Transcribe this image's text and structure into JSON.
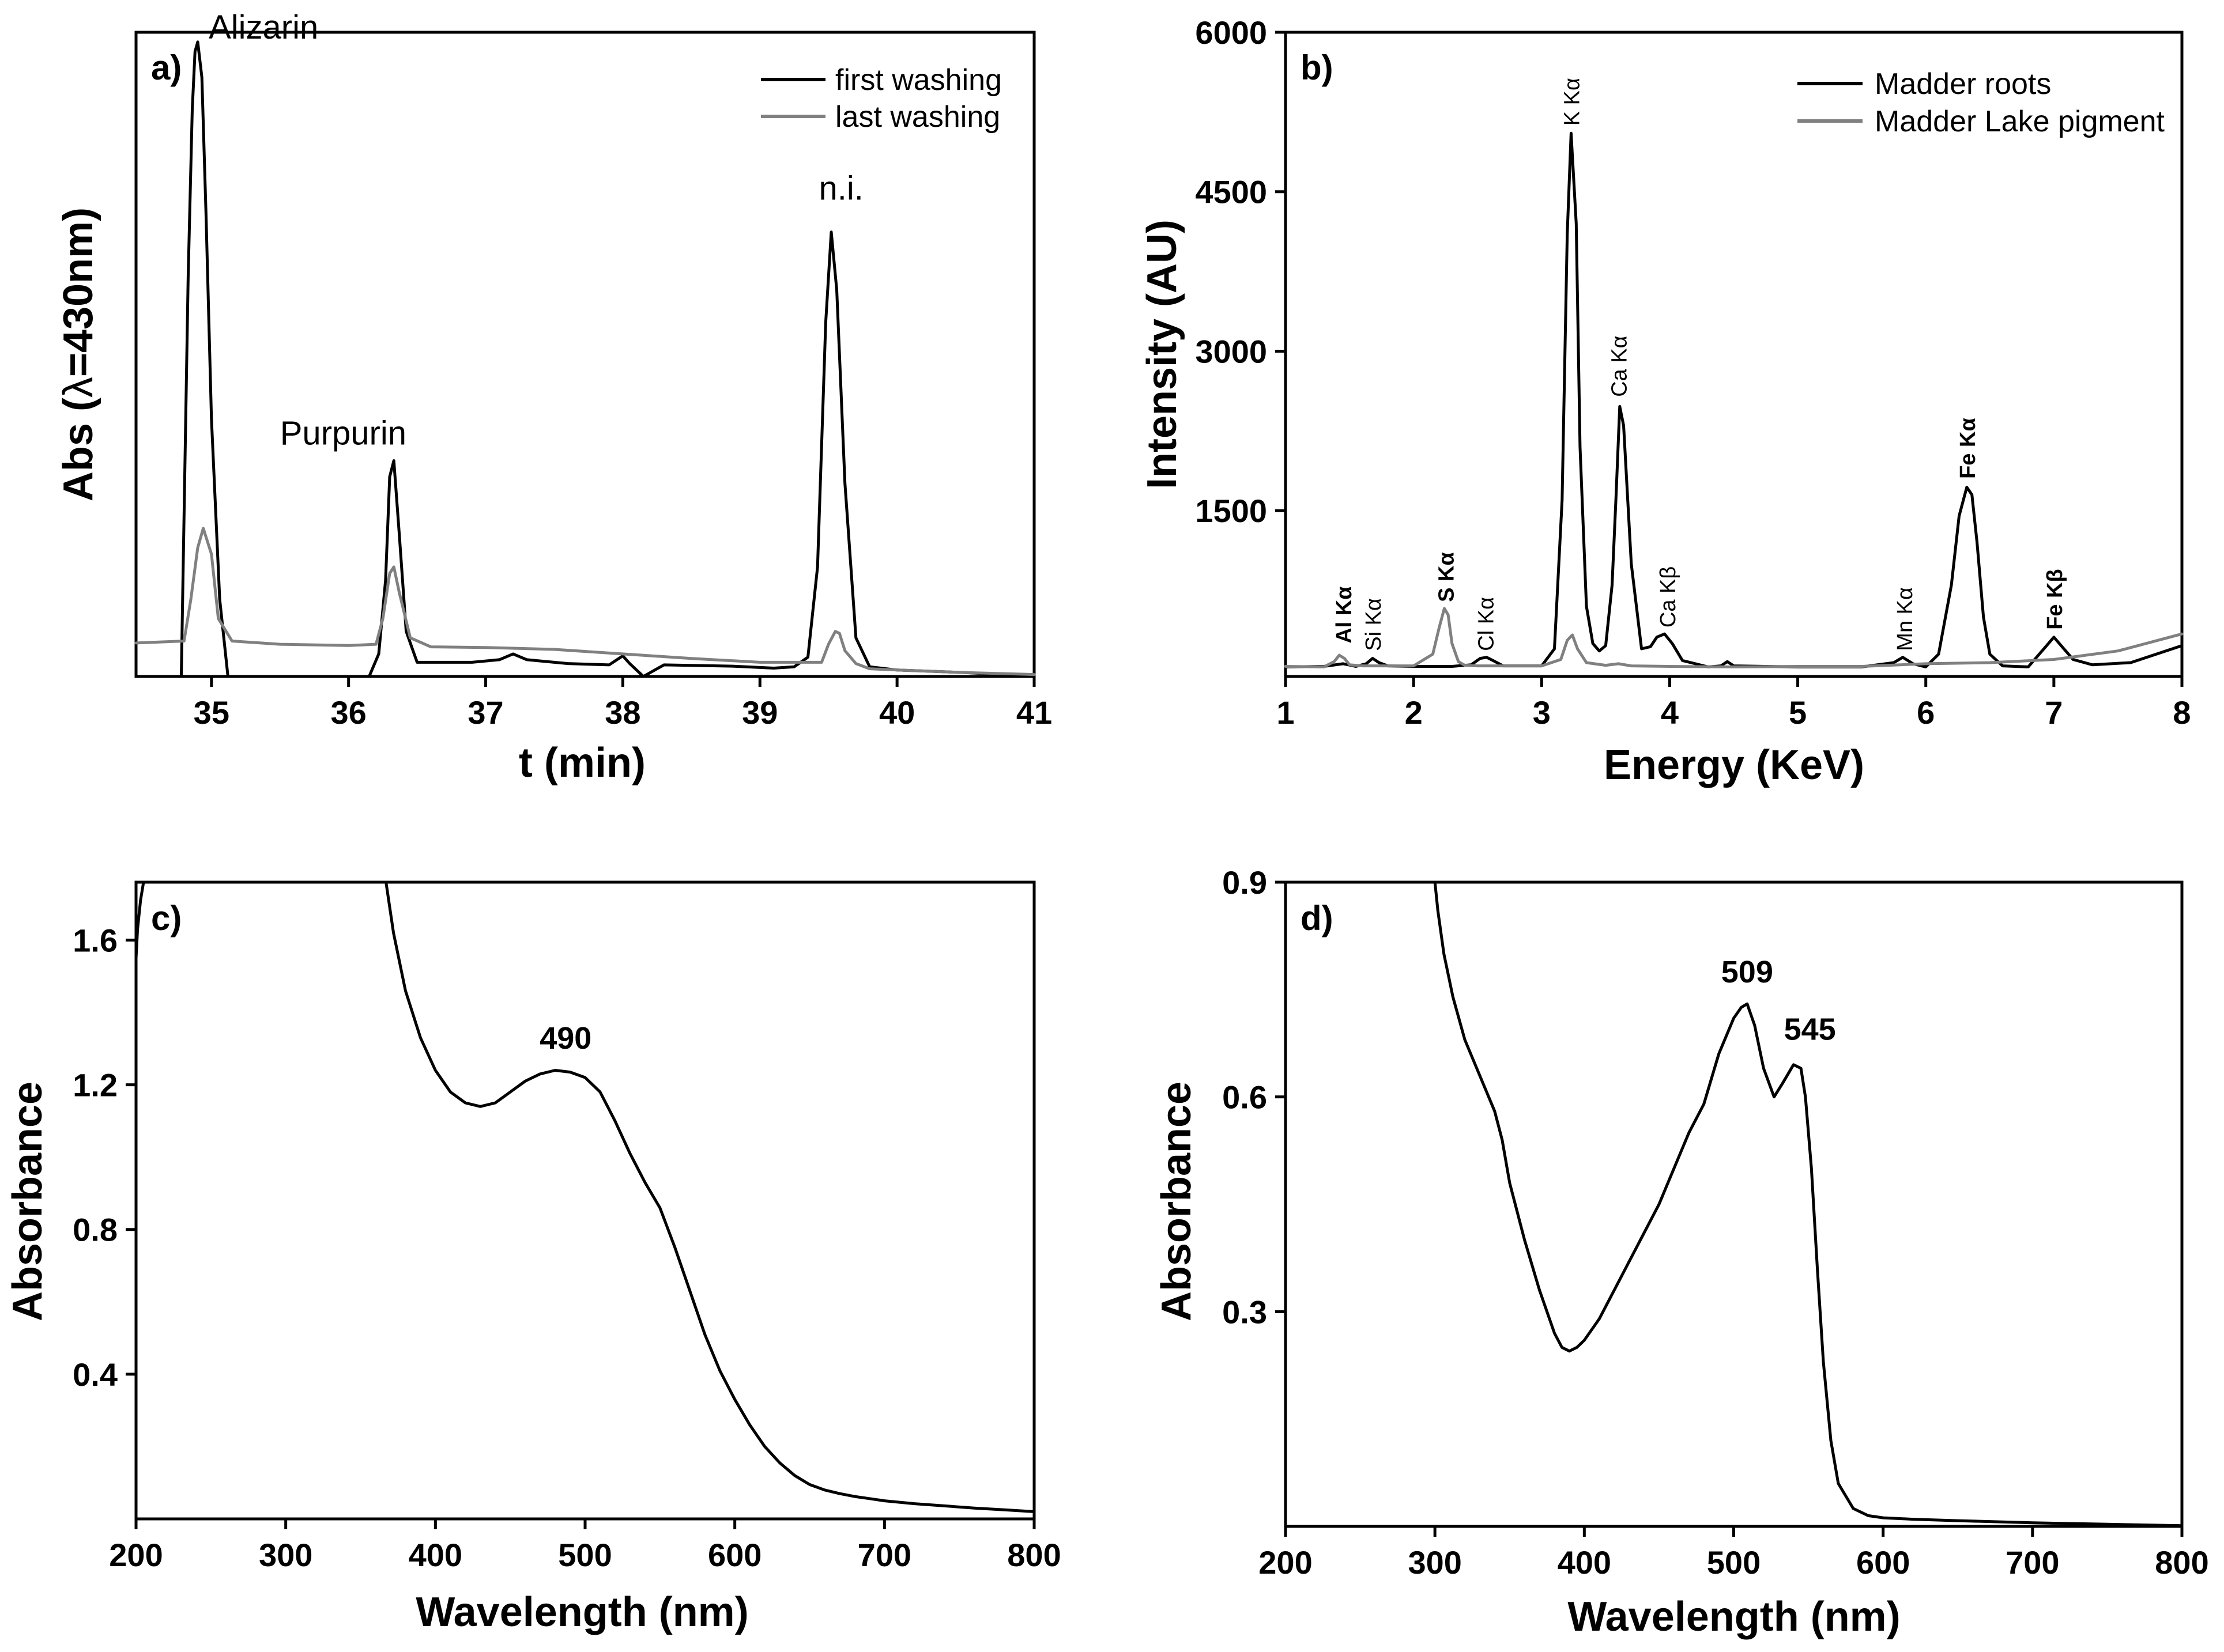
{
  "colors": {
    "black": "#000000",
    "gray": "#808080"
  },
  "chart_data": [
    {
      "id": "a",
      "type": "line",
      "panel_label": "a)",
      "title": "",
      "xlabel": "t (min)",
      "ylabel_prefix": "Abs (",
      "ylabel_symbol": "λ",
      "ylabel_suffix": "=430nm)",
      "xlim": [
        34.45,
        41
      ],
      "ylim": [
        0,
        1
      ],
      "x_ticks": [
        35,
        36,
        37,
        38,
        39,
        40,
        41
      ],
      "x_tick_labels": [
        "35",
        "36",
        "37",
        "38",
        "39",
        "40",
        "41"
      ],
      "legend": {
        "position": "top-right",
        "entries": [
          "first washing",
          "last washing"
        ]
      },
      "series": [
        {
          "name": "first washing",
          "color": "#000000",
          "x": [
            34.78,
            34.8,
            34.83,
            34.86,
            34.88,
            34.9,
            34.93,
            34.96,
            35.0,
            35.06,
            35.12,
            35.2,
            35.5,
            36.0,
            36.15,
            36.22,
            36.27,
            36.3,
            36.33,
            36.37,
            36.42,
            36.5,
            36.9,
            37.1,
            37.2,
            37.3,
            37.6,
            37.9,
            38.0,
            38.05,
            38.15,
            38.3,
            38.8,
            39.1,
            39.25,
            39.35,
            39.42,
            39.48,
            39.52,
            39.56,
            39.62,
            39.7,
            39.8,
            40.0,
            40.5,
            41.0
          ],
          "y": [
            0.0,
            0.25,
            0.62,
            0.88,
            0.97,
            0.985,
            0.93,
            0.72,
            0.4,
            0.12,
            0.0,
            0.0,
            0.0,
            0.0,
            0.0,
            0.035,
            0.15,
            0.31,
            0.335,
            0.22,
            0.07,
            0.022,
            0.022,
            0.026,
            0.035,
            0.026,
            0.02,
            0.018,
            0.032,
            0.02,
            0.0,
            0.018,
            0.016,
            0.013,
            0.015,
            0.03,
            0.17,
            0.55,
            0.69,
            0.6,
            0.3,
            0.06,
            0.015,
            0.01,
            0.006,
            0.0
          ]
        },
        {
          "name": "last washing",
          "color": "#808080",
          "x": [
            34.45,
            34.8,
            34.85,
            34.9,
            34.94,
            35.0,
            35.05,
            35.15,
            35.5,
            36.0,
            36.2,
            36.25,
            36.3,
            36.33,
            36.37,
            36.45,
            36.6,
            37.0,
            37.5,
            38.0,
            38.5,
            39.0,
            39.45,
            39.5,
            39.55,
            39.58,
            39.62,
            39.7,
            39.8,
            40.0,
            40.5,
            41.0
          ],
          "y": [
            0.052,
            0.055,
            0.12,
            0.2,
            0.23,
            0.19,
            0.09,
            0.055,
            0.05,
            0.048,
            0.05,
            0.09,
            0.16,
            0.17,
            0.13,
            0.06,
            0.046,
            0.045,
            0.042,
            0.035,
            0.028,
            0.022,
            0.022,
            0.05,
            0.07,
            0.067,
            0.04,
            0.02,
            0.012,
            0.01,
            0.006,
            0.003
          ]
        }
      ],
      "annotations": [
        {
          "text": "Alizarin",
          "x": 34.98,
          "y": 0.99,
          "style": "normal"
        },
        {
          "text": "Purpurin",
          "x": 35.5,
          "y": 0.36,
          "style": "normal"
        },
        {
          "text": "n.i.",
          "x": 39.43,
          "y": 0.74,
          "style": "normal"
        }
      ]
    },
    {
      "id": "b",
      "type": "line",
      "panel_label": "b)",
      "title": "",
      "xlabel": "Energy (KeV)",
      "ylabel": "Intensity (AU)",
      "xlim": [
        1,
        8
      ],
      "ylim": [
        -60,
        6000
      ],
      "x_ticks": [
        1,
        2,
        3,
        4,
        5,
        6,
        7,
        8
      ],
      "x_tick_labels": [
        "1",
        "2",
        "3",
        "4",
        "5",
        "6",
        "7",
        "8"
      ],
      "y_ticks": [
        1500,
        3000,
        4500,
        6000
      ],
      "y_tick_labels": [
        "1500",
        "3000",
        "4500",
        "6000"
      ],
      "legend": {
        "position": "top-right",
        "entries": [
          "Madder roots",
          "Madder Lake pigment"
        ]
      },
      "series": [
        {
          "name": "Madder roots",
          "color": "#000000",
          "x": [
            1.0,
            1.3,
            1.45,
            1.55,
            1.63,
            1.68,
            1.73,
            1.8,
            2.0,
            2.3,
            2.45,
            2.52,
            2.57,
            2.62,
            2.7,
            3.0,
            3.1,
            3.16,
            3.2,
            3.23,
            3.27,
            3.3,
            3.35,
            3.4,
            3.45,
            3.5,
            3.55,
            3.58,
            3.61,
            3.64,
            3.7,
            3.78,
            3.85,
            3.9,
            3.96,
            4.02,
            4.1,
            4.3,
            4.4,
            4.45,
            4.5,
            5.0,
            5.5,
            5.75,
            5.82,
            5.9,
            6.0,
            6.1,
            6.2,
            6.26,
            6.32,
            6.36,
            6.4,
            6.45,
            6.5,
            6.6,
            6.8,
            6.95,
            7.0,
            7.05,
            7.15,
            7.3,
            7.6,
            8.0
          ],
          "y": [
            30,
            35,
            60,
            35,
            60,
            110,
            70,
            40,
            35,
            35,
            50,
            110,
            120,
            90,
            40,
            40,
            200,
            1600,
            4100,
            5050,
            4200,
            2100,
            600,
            250,
            180,
            230,
            800,
            1600,
            2480,
            2300,
            1000,
            200,
            220,
            310,
            340,
            250,
            90,
            30,
            40,
            80,
            40,
            30,
            30,
            70,
            120,
            60,
            30,
            150,
            800,
            1450,
            1720,
            1650,
            1200,
            500,
            150,
            40,
            30,
            240,
            310,
            240,
            100,
            50,
            70,
            230
          ]
        },
        {
          "name": "Madder Lake pigment",
          "color": "#808080",
          "x": [
            1.0,
            1.3,
            1.38,
            1.42,
            1.46,
            1.5,
            1.6,
            2.0,
            2.15,
            2.2,
            2.24,
            2.27,
            2.3,
            2.35,
            2.4,
            2.5,
            3.0,
            3.15,
            3.2,
            3.24,
            3.28,
            3.35,
            3.5,
            3.6,
            3.7,
            4.0,
            4.5,
            5.0,
            5.5,
            6.0,
            6.5,
            7.0,
            7.5,
            8.0
          ],
          "y": [
            35,
            30,
            80,
            140,
            110,
            50,
            40,
            40,
            150,
            400,
            580,
            520,
            250,
            80,
            45,
            40,
            40,
            100,
            280,
            330,
            200,
            70,
            45,
            60,
            40,
            35,
            30,
            35,
            35,
            60,
            70,
            100,
            180,
            340
          ]
        }
      ],
      "annotations": [
        {
          "text": "Al Kα",
          "x": 1.45,
          "y": 250,
          "style": "bold"
        },
        {
          "text": "Si Kα",
          "x": 1.68,
          "y": 180,
          "style": "normal"
        },
        {
          "text": "S Kα",
          "x": 2.25,
          "y": 640,
          "style": "bold"
        },
        {
          "text": "Cl Kα",
          "x": 2.56,
          "y": 180,
          "style": "normal"
        },
        {
          "text": "K Kα",
          "x": 3.23,
          "y": 5120,
          "style": "normal"
        },
        {
          "text": "Ca Kα",
          "x": 3.6,
          "y": 2570,
          "style": "normal"
        },
        {
          "text": "Ca Kβ",
          "x": 3.98,
          "y": 400,
          "style": "normal"
        },
        {
          "text": "Mn Kα",
          "x": 5.83,
          "y": 180,
          "style": "normal"
        },
        {
          "text": "Fe Kα",
          "x": 6.32,
          "y": 1800,
          "style": "bold"
        },
        {
          "text": "Fe Kβ",
          "x": 7.0,
          "y": 380,
          "style": "bold"
        }
      ]
    },
    {
      "id": "c",
      "type": "line",
      "panel_label": "c)",
      "title": "",
      "xlabel": "Wavelength (nm)",
      "ylabel": "Absorbance",
      "xlim": [
        200,
        800
      ],
      "ylim": [
        0,
        1.76
      ],
      "x_ticks": [
        200,
        300,
        400,
        500,
        600,
        700,
        800
      ],
      "x_tick_labels": [
        "200",
        "300",
        "400",
        "500",
        "600",
        "700",
        "800"
      ],
      "y_ticks": [
        0.4,
        0.8,
        1.2,
        1.6
      ],
      "y_tick_labels": [
        "0.4",
        "0.8",
        "1.2",
        "1.6"
      ],
      "series": [
        {
          "name": "Absorbance",
          "color": "#000000",
          "segments": [
            {
              "x": [
                200,
                201,
                203,
                205
              ],
              "y": [
                1.55,
                1.63,
                1.71,
                1.76
              ]
            },
            {
              "x": [
                367,
                372,
                380,
                390,
                400,
                410,
                420,
                430,
                440,
                450,
                460,
                470,
                480,
                490,
                500,
                510,
                520,
                530,
                540,
                550,
                560,
                570,
                580,
                590,
                600,
                610,
                620,
                630,
                640,
                650,
                660,
                670,
                680,
                690,
                700,
                720,
                740,
                760,
                780,
                800
              ],
              "y": [
                1.76,
                1.62,
                1.46,
                1.33,
                1.24,
                1.18,
                1.15,
                1.14,
                1.15,
                1.18,
                1.21,
                1.23,
                1.24,
                1.235,
                1.22,
                1.18,
                1.1,
                1.01,
                0.93,
                0.86,
                0.75,
                0.63,
                0.51,
                0.41,
                0.33,
                0.26,
                0.2,
                0.155,
                0.12,
                0.095,
                0.08,
                0.07,
                0.062,
                0.056,
                0.05,
                0.042,
                0.036,
                0.03,
                0.025,
                0.02
              ]
            }
          ]
        }
      ],
      "annotations": [
        {
          "text": "490",
          "x": 487,
          "y": 1.3,
          "style": "bold"
        }
      ]
    },
    {
      "id": "d",
      "type": "line",
      "panel_label": "d)",
      "title": "",
      "xlabel": "Wavelength (nm)",
      "ylabel": "Absorbance",
      "xlim": [
        200,
        800
      ],
      "ylim": [
        0,
        0.9
      ],
      "x_ticks": [
        200,
        300,
        400,
        500,
        600,
        700,
        800
      ],
      "x_tick_labels": [
        "200",
        "300",
        "400",
        "500",
        "600",
        "700",
        "800"
      ],
      "y_ticks": [
        0.3,
        0.6,
        0.9
      ],
      "y_tick_labels": [
        "0.3",
        "0.6",
        "0.9"
      ],
      "series": [
        {
          "name": "Absorbance",
          "color": "#000000",
          "segments": [
            {
              "x": [
                300,
                302,
                306,
                312,
                320,
                330,
                340,
                345,
                350,
                360,
                370,
                380,
                385,
                390,
                395,
                400,
                410,
                420,
                430,
                440,
                450,
                460,
                470,
                480,
                490,
                500,
                505,
                509,
                514,
                520,
                527,
                533,
                540,
                545,
                548,
                552,
                556,
                560,
                565,
                570,
                580,
                590,
                600,
                620,
                650,
                700,
                750,
                800
              ],
              "y": [
                0.9,
                0.86,
                0.8,
                0.74,
                0.68,
                0.63,
                0.58,
                0.54,
                0.48,
                0.4,
                0.33,
                0.27,
                0.25,
                0.245,
                0.25,
                0.26,
                0.29,
                0.33,
                0.37,
                0.41,
                0.45,
                0.5,
                0.55,
                0.59,
                0.66,
                0.71,
                0.725,
                0.73,
                0.7,
                0.64,
                0.6,
                0.62,
                0.645,
                0.64,
                0.6,
                0.5,
                0.36,
                0.23,
                0.12,
                0.06,
                0.025,
                0.015,
                0.012,
                0.01,
                0.008,
                0.005,
                0.003,
                0.001
              ]
            }
          ]
        }
      ],
      "annotations": [
        {
          "text": "509",
          "x": 509,
          "y": 0.76,
          "style": "bold"
        },
        {
          "text": "545",
          "x": 551,
          "y": 0.68,
          "style": "bold"
        }
      ]
    }
  ]
}
